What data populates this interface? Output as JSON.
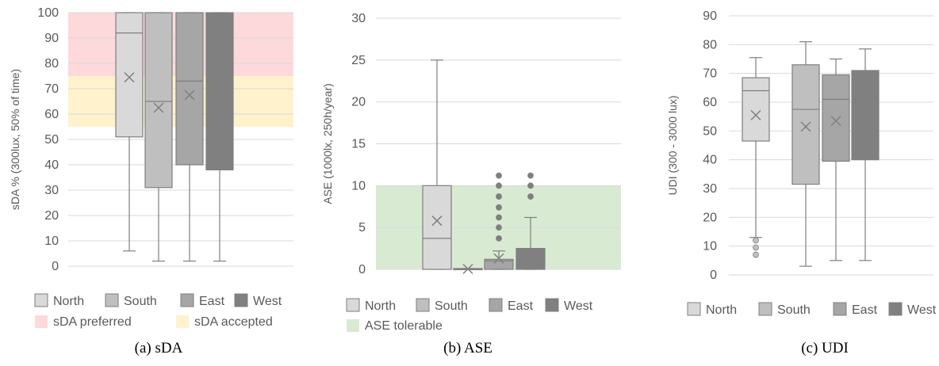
{
  "charts": [
    {
      "caption": "(a)   sDA",
      "chart_data": {
        "type": "box",
        "ylabel": "sDA % (300lux, 50% of time)",
        "ylim": [
          0,
          100
        ],
        "yticks": [
          0,
          10,
          20,
          30,
          40,
          50,
          60,
          70,
          80,
          90,
          100
        ],
        "grid": true,
        "legend_position": "bottom",
        "series": [
          {
            "name": "North",
            "color": "#d9d9d9",
            "min": 6,
            "q1": 51,
            "median": 92,
            "q3": 100,
            "max": 100,
            "mean": 74.5,
            "outliers": []
          },
          {
            "name": "South",
            "color": "#bfbfbf",
            "min": 2,
            "q1": 31,
            "median": 65,
            "q3": 100,
            "max": 100,
            "mean": 62.5,
            "outliers": []
          },
          {
            "name": "East",
            "color": "#a6a6a6",
            "min": 2,
            "q1": 40,
            "median": 73,
            "q3": 100,
            "max": 100,
            "mean": 67.5,
            "outliers": []
          },
          {
            "name": "West",
            "color": "#808080",
            "min": 2,
            "q1": 38,
            "median": 72,
            "q3": 100,
            "max": 100,
            "mean": 67.3,
            "outliers": []
          }
        ],
        "bands": [
          {
            "name": "sDA preferred",
            "from": 75,
            "to": 100,
            "color": "#fdd9dc"
          },
          {
            "name": "sDA accepted",
            "from": 55,
            "to": 75,
            "color": "#fff2cc"
          }
        ]
      }
    },
    {
      "caption": "(b)   ASE",
      "chart_data": {
        "type": "box",
        "ylabel": "ASE (1000lx, 250h/year)",
        "ylim": [
          0,
          30
        ],
        "yticks": [
          0,
          5,
          10,
          15,
          20,
          25,
          30
        ],
        "grid": true,
        "legend_position": "bottom",
        "series": [
          {
            "name": "North",
            "color": "#d9d9d9",
            "min": 0,
            "q1": 0,
            "median": 3.7,
            "q3": 10,
            "max": 25,
            "mean": 5.8,
            "outliers": []
          },
          {
            "name": "South",
            "color": "#bfbfbf",
            "min": 0,
            "q1": 0,
            "median": 0,
            "q3": 0.1,
            "max": 0.1,
            "mean": 0.05,
            "outliers": []
          },
          {
            "name": "East",
            "color": "#a6a6a6",
            "min": 0,
            "q1": 0,
            "median": 1,
            "q3": 1.2,
            "max": 2.2,
            "mean": 1.3,
            "outliers": [
              3.7,
              5,
              6.2,
              7.4,
              8.7,
              10,
              11.2
            ]
          },
          {
            "name": "West",
            "color": "#808080",
            "min": 0,
            "q1": 0,
            "median": 1.2,
            "q3": 2.5,
            "max": 6.2,
            "mean": 1.5,
            "outliers": [
              8.7,
              10,
              11.2
            ]
          }
        ],
        "bands": [
          {
            "name": "ASE tolerable",
            "from": 0,
            "to": 10,
            "color": "#d9ead3"
          }
        ]
      }
    },
    {
      "caption": "(c)   UDI",
      "chart_data": {
        "type": "box",
        "ylabel": "UDI (300 - 3000 lux)",
        "ylim": [
          0,
          90
        ],
        "yticks": [
          0,
          10,
          20,
          30,
          40,
          50,
          60,
          70,
          80,
          90
        ],
        "grid": true,
        "legend_position": "bottom",
        "series": [
          {
            "name": "North",
            "color": "#d9d9d9",
            "min": 13,
            "q1": 46.5,
            "median": 64,
            "q3": 68.5,
            "max": 75.5,
            "mean": 55.5,
            "outliers": [
              7,
              9.5,
              12
            ]
          },
          {
            "name": "South",
            "color": "#bfbfbf",
            "min": 3,
            "q1": 31.5,
            "median": 57.5,
            "q3": 73,
            "max": 81,
            "mean": 51.5,
            "outliers": []
          },
          {
            "name": "East",
            "color": "#a6a6a6",
            "min": 5,
            "q1": 39.5,
            "median": 61,
            "q3": 69.5,
            "max": 75,
            "mean": 53.5,
            "outliers": []
          },
          {
            "name": "West",
            "color": "#808080",
            "min": 5,
            "q1": 40,
            "median": 61,
            "q3": 71,
            "max": 78.5,
            "mean": 54,
            "outliers": []
          }
        ],
        "bands": []
      }
    }
  ]
}
